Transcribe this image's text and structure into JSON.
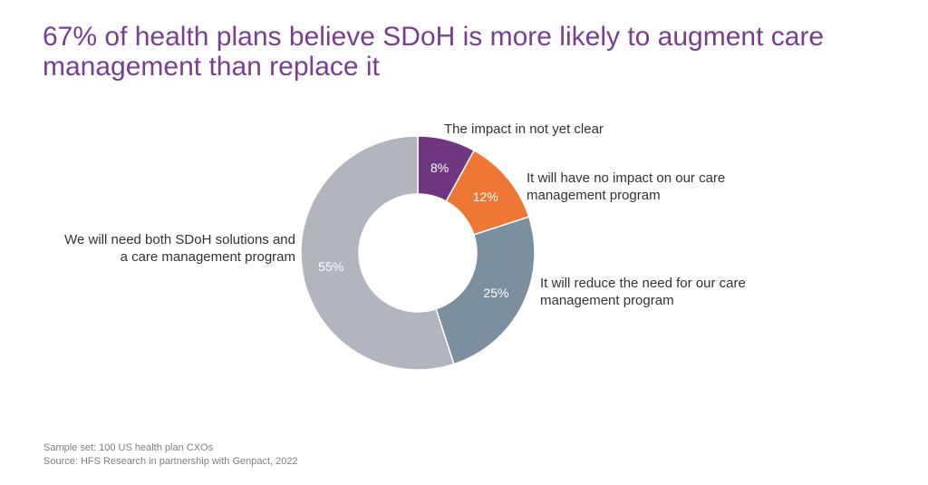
{
  "page": {
    "title": "67% of health plans believe SDoH is more likely to augment care management than replace it"
  },
  "chart_data": {
    "type": "pie",
    "subtype": "donut",
    "title": "67% of health plans believe SDoH is more likely to augment care management than replace it",
    "slices": [
      {
        "label": "The impact in not yet clear",
        "value": 8,
        "value_label": "8%",
        "color": "#6f3682"
      },
      {
        "label": "It will have no impact on our care management program",
        "value": 12,
        "value_label": "12%",
        "color": "#ef7735"
      },
      {
        "label": "It will reduce the need for our care management program",
        "value": 25,
        "value_label": "25%",
        "color": "#7b8f9f"
      },
      {
        "label": "We will need both SDoH solutions and a care management program",
        "value": 55,
        "value_label": "55%",
        "color": "#b2b5be"
      }
    ]
  },
  "footer": {
    "sample": "Sample set: 100 US health plan CXOs",
    "source": "Source: HFS Research in partnership with Genpact, 2022"
  }
}
